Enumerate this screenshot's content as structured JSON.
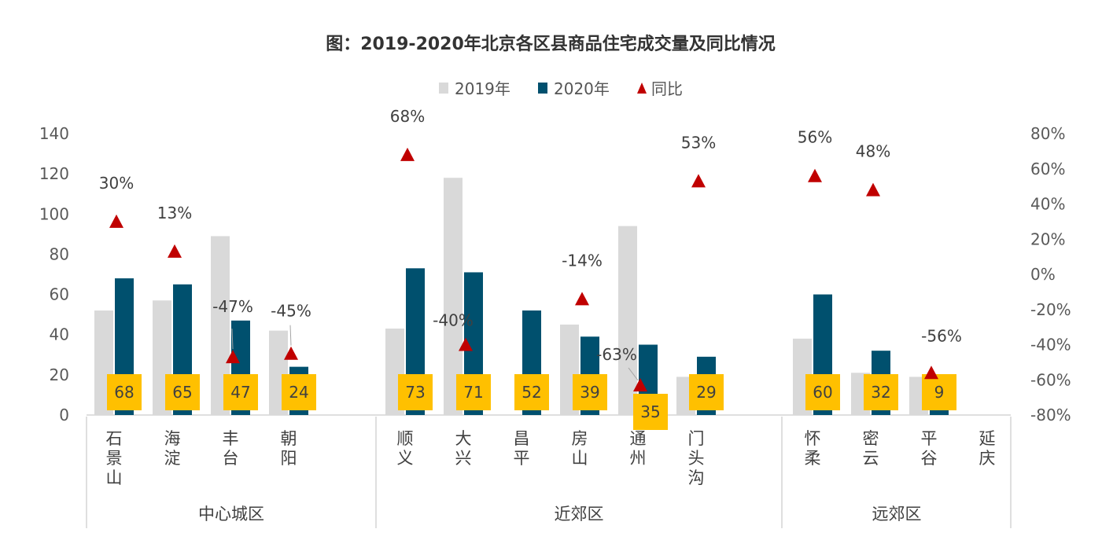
{
  "colors": {
    "y2019": "#d9d9d9",
    "y2020": "#00506e",
    "yoy": "#c00000",
    "label_bg": "#ffc000",
    "axis": "#bfbfbf"
  },
  "chart_data": {
    "type": "bar",
    "title": "图：2019-2020年北京各区县商品住宅成交量及同比情况",
    "legend": [
      "2019年",
      "2020年",
      "同比"
    ],
    "legend_position": "top",
    "grid": false,
    "y_left": {
      "min": 0,
      "max": 140,
      "ticks": [
        "0",
        "20",
        "40",
        "60",
        "80",
        "100",
        "120",
        "140"
      ]
    },
    "y_right": {
      "min": -80,
      "max": 80,
      "ticks": [
        "-80%",
        "-60%",
        "-40%",
        "-20%",
        "0%",
        "20%",
        "40%",
        "60%",
        "80%"
      ]
    },
    "groups": [
      {
        "name": "中心城区",
        "categories": [
          "石景山",
          "海淀",
          "丰台",
          "朝阳"
        ]
      },
      {
        "name": "近郊区",
        "categories": [
          "顺义",
          "大兴",
          "昌平",
          "房山",
          "通州",
          "门头沟"
        ]
      },
      {
        "name": "远郊区",
        "categories": [
          "怀柔",
          "密云",
          "平谷",
          "延庆"
        ]
      }
    ],
    "categories": [
      "石景山",
      "海淀",
      "丰台",
      "朝阳",
      "顺义",
      "大兴",
      "昌平",
      "房山",
      "通州",
      "门头沟",
      "怀柔",
      "密云",
      "平谷",
      "延庆"
    ],
    "series": [
      {
        "name": "2019年",
        "values": [
          52,
          57,
          89,
          42,
          43,
          118,
          null,
          45,
          94,
          19,
          38,
          21,
          19,
          null
        ]
      },
      {
        "name": "2020年",
        "values": [
          68,
          65,
          47,
          24,
          73,
          71,
          52,
          39,
          35,
          29,
          60,
          32,
          9,
          null
        ]
      },
      {
        "name": "同比",
        "values": [
          30,
          13,
          -47,
          -45,
          68,
          -40,
          null,
          -14,
          -63,
          53,
          56,
          48,
          -56,
          null
        ]
      }
    ],
    "value_labels": [
      "68",
      "65",
      "47",
      "24",
      "73",
      "71",
      "52",
      "39",
      "35",
      "29",
      "60",
      "32",
      "9",
      ""
    ],
    "pct_labels": [
      "30%",
      "13%",
      "-47%",
      "-45%",
      "68%",
      "-40%",
      "",
      "-14%",
      "-63%",
      "53%",
      "56%",
      "48%",
      "-56%",
      ""
    ]
  }
}
